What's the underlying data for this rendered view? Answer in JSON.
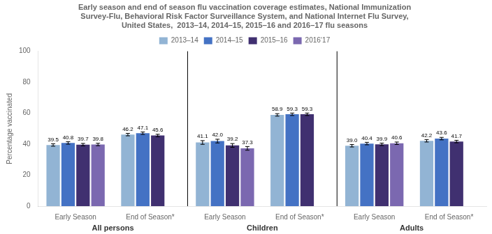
{
  "chart_data": {
    "type": "bar",
    "title": [
      "Early season and end of season flu vaccination coverage estimates, National Immunization",
      "Survey-Flu, Behavioral Risk Factor Surveillance System, and National Internet Flu Survey,",
      "United States,  2013–14, 2014–15, 2015–16 and 2016–17 flu seasons"
    ],
    "ylabel": "Percentage vaccinated",
    "categories": [
      "Early Season",
      "End of Season*",
      "Early Season",
      "End of Season*",
      "Early Season",
      "End of Season*"
    ],
    "groups": [
      {
        "name": "All persons",
        "categories": [
          "Early Season",
          "End of Season*"
        ]
      },
      {
        "name": "Children",
        "categories": [
          "Early Season",
          "End of Season*"
        ]
      },
      {
        "name": "Adults",
        "categories": [
          "Early Season",
          "End of Season*"
        ]
      }
    ],
    "series": [
      {
        "name": "2013–14",
        "color": "#92B4D4",
        "values": [
          39.5,
          46.2,
          41.1,
          58.9,
          39.0,
          42.2
        ],
        "errors": [
          0.8,
          0.8,
          1.2,
          0.8,
          0.8,
          0.8
        ],
        "value_labels": [
          "39.5",
          "46.2",
          "41.1",
          "58.9",
          "39.0",
          "42.2"
        ]
      },
      {
        "name": "2014–15",
        "color": "#4472C4",
        "values": [
          40.8,
          47.1,
          42.0,
          59.3,
          40.4,
          43.6
        ],
        "errors": [
          0.8,
          0.8,
          1.2,
          0.8,
          0.8,
          0.8
        ],
        "value_labels": [
          "40.8",
          "47.1",
          "42.0",
          "59.3",
          "40.4",
          "43.6"
        ]
      },
      {
        "name": "2015–16",
        "color": "#403070",
        "values": [
          39.7,
          45.6,
          39.2,
          59.3,
          39.9,
          41.7
        ],
        "errors": [
          0.8,
          0.8,
          1.2,
          0.8,
          0.8,
          0.8
        ],
        "value_labels": [
          "39.7",
          "45.6",
          "39.2",
          "59.3",
          "39.9",
          "41.7"
        ]
      },
      {
        "name": "2016‘17",
        "color": "#7B68B0",
        "values": [
          39.8,
          null,
          37.3,
          null,
          40.6,
          null
        ],
        "errors": [
          0.8,
          null,
          1.2,
          null,
          0.8,
          null
        ],
        "value_labels": [
          "39.8",
          null,
          "37.3",
          null,
          "40.6",
          null
        ]
      }
    ],
    "ylim": [
      0,
      100
    ],
    "yticks": [
      0,
      20,
      40,
      60,
      80,
      100
    ],
    "grid": false,
    "legend": "top",
    "data_labels": true
  }
}
